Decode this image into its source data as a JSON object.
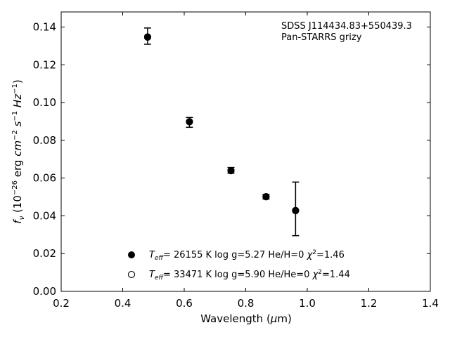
{
  "chart_data": {
    "type": "scatter",
    "xlabel": "Wavelength (μm)",
    "ylabel": "f_ν (10^-26 erg cm^-2 s^-1 Hz^-1)",
    "xlim": [
      0.2,
      1.4
    ],
    "ylim": [
      0.0,
      0.148
    ],
    "xticks": [
      "0.2",
      "0.4",
      "0.6",
      "0.8",
      "1.0",
      "1.2",
      "1.4"
    ],
    "yticks": [
      "0.00",
      "0.02",
      "0.04",
      "0.06",
      "0.08",
      "0.10",
      "0.12",
      "0.14"
    ],
    "grid": false,
    "annotation": [
      "SDSS J114434.83+550439.3",
      "Pan-STARRS grizy"
    ],
    "observed": {
      "x": [
        0.481,
        0.617,
        0.752,
        0.866,
        0.962
      ],
      "y": [
        0.1352,
        0.0895,
        0.0641,
        0.0501,
        0.0437
      ],
      "err": [
        0.0043,
        0.0026,
        0.0015,
        0.0012,
        0.0142
      ]
    },
    "series": [
      {
        "name": "T_eff= 26155 K  log g=5.27  He/H=0  χ^2=1.46",
        "marker": "filled-circle",
        "x": [
          0.481,
          0.617,
          0.752,
          0.866,
          0.962
        ],
        "y": [
          0.1348,
          0.0898,
          0.0639,
          0.0502,
          0.0427
        ]
      },
      {
        "name": "T_eff= 33471 K  log g=5.90  He/He=0  χ^2=1.44",
        "marker": "open-circle",
        "x": [
          0.481,
          0.617,
          0.752,
          0.866,
          0.962
        ],
        "y": [
          0.1346,
          0.0899,
          0.064,
          0.0501,
          0.0429
        ]
      }
    ],
    "legend_placement": "lower-center"
  }
}
